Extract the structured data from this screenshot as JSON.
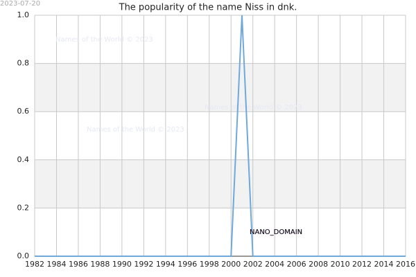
{
  "chart_data": {
    "type": "line",
    "title": "The popularity of the name Niss in dnk.",
    "x": [
      1982,
      1983,
      1984,
      1985,
      1986,
      1987,
      1988,
      1989,
      1990,
      1991,
      1992,
      1993,
      1994,
      1995,
      1996,
      1997,
      1998,
      1999,
      2000,
      2001,
      2002,
      2003,
      2004,
      2005,
      2006,
      2007,
      2008,
      2009,
      2010,
      2011,
      2012,
      2013,
      2014,
      2015,
      2016
    ],
    "series": [
      {
        "name": "Niss",
        "color": "#6fa8dc",
        "values": [
          0,
          0,
          0,
          0,
          0,
          0,
          0,
          0,
          0,
          0,
          0,
          0,
          0,
          0,
          0,
          0,
          0,
          0,
          0,
          1,
          0,
          0,
          0,
          0,
          0,
          0,
          0,
          0,
          0,
          0,
          0,
          0,
          0,
          0,
          0
        ]
      }
    ],
    "xlim": [
      1982,
      2016
    ],
    "xticks": [
      1982,
      1984,
      1986,
      1988,
      1990,
      1992,
      1994,
      1996,
      1998,
      2000,
      2002,
      2004,
      2006,
      2008,
      2010,
      2012,
      2014,
      2016
    ],
    "ylim": [
      0,
      1
    ],
    "yticks": [
      {
        "value": 0,
        "label": "0.0"
      },
      {
        "value": 0.2,
        "label": "0.2"
      },
      {
        "value": 0.4,
        "label": "0.4"
      },
      {
        "value": 0.6,
        "label": "0.6"
      },
      {
        "value": 0.8,
        "label": "0.8"
      },
      {
        "value": 1,
        "label": "1.0"
      }
    ],
    "grid": true,
    "bands": true,
    "timestamp": "2023-07-20",
    "watermarks": [
      "Names of the World © 2023",
      "Names of the World © 2023",
      "Names of the World © 2023"
    ],
    "label": "NANO_DOMAIN"
  }
}
